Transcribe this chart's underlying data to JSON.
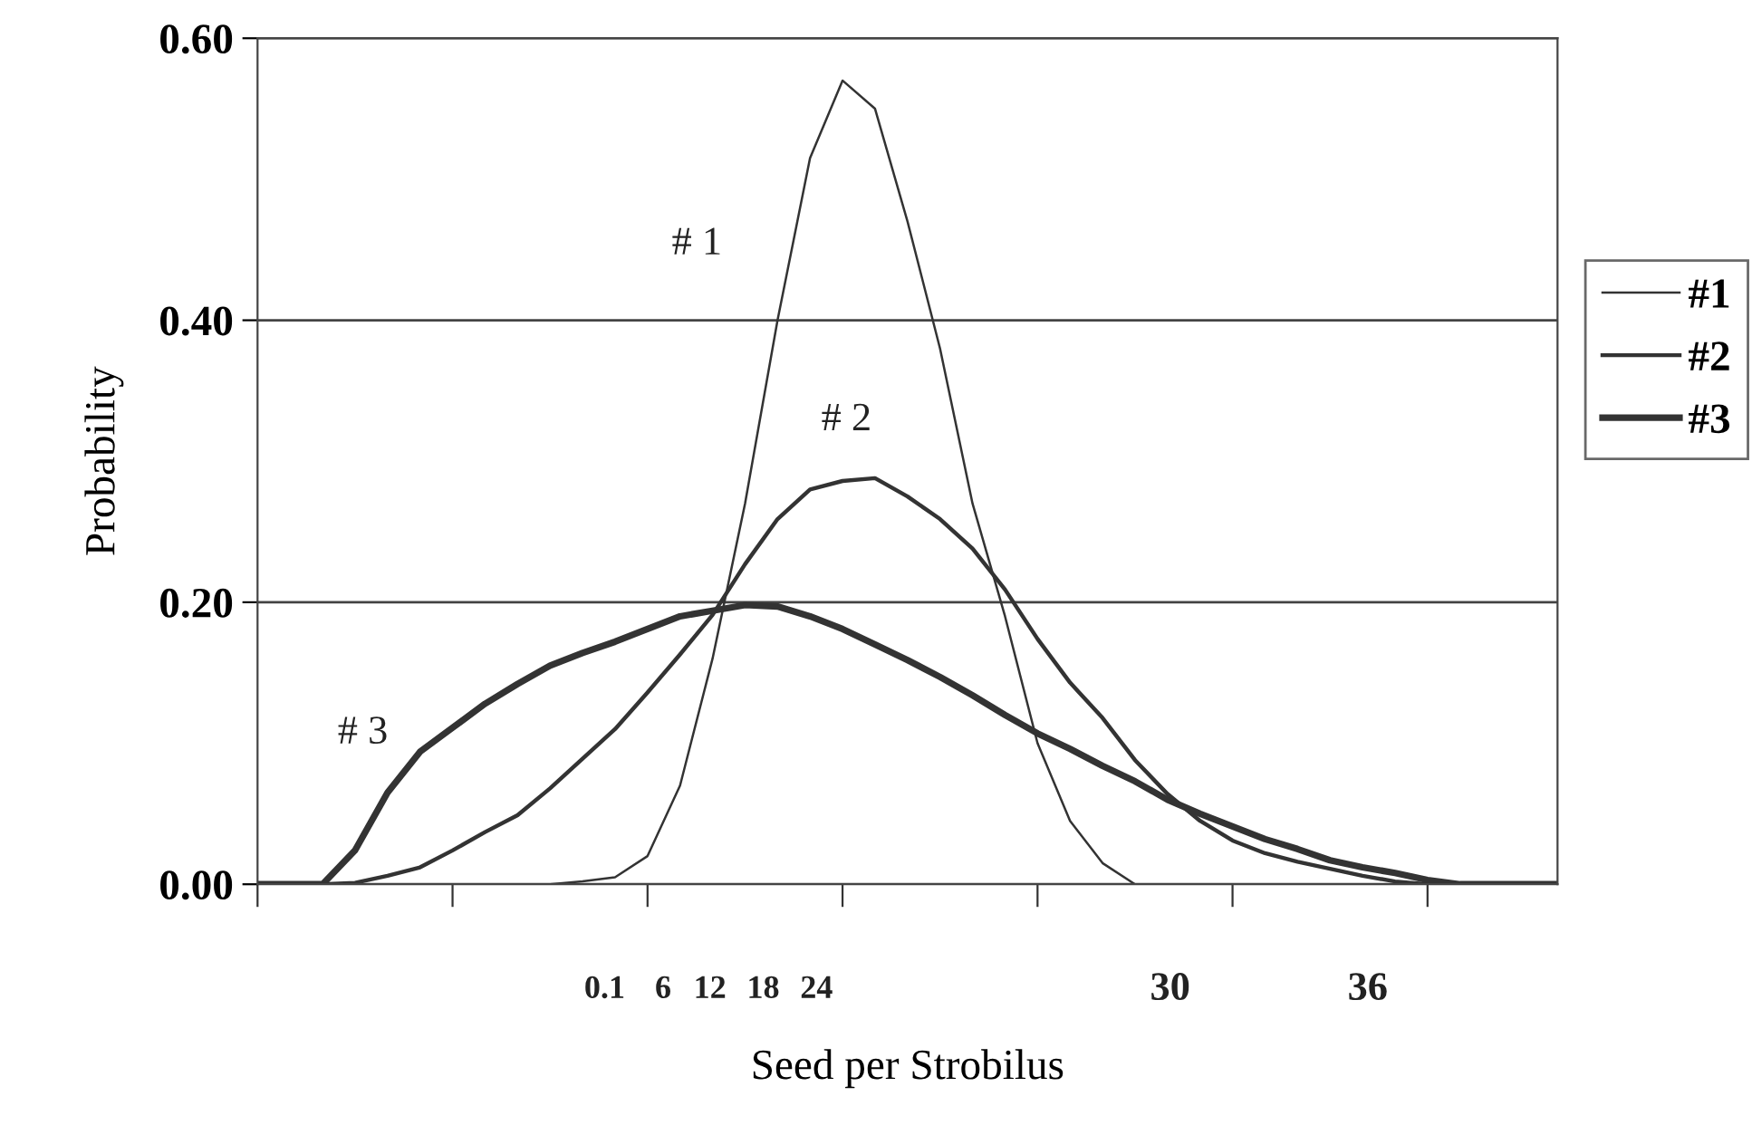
{
  "chart_data": {
    "type": "line",
    "xlabel": "Seed per Strobilus",
    "ylabel": "Probability",
    "categories": [
      null,
      null,
      null,
      null,
      null,
      null,
      null,
      null,
      null,
      null,
      null,
      null,
      null,
      null,
      null,
      null,
      null,
      null,
      null,
      null,
      null,
      null,
      null,
      null,
      null,
      null,
      null,
      null,
      null,
      null,
      null,
      null,
      null,
      null,
      null,
      null,
      null,
      null,
      null,
      null,
      null
    ],
    "ylim": [
      0,
      0.6
    ],
    "yticks": [
      {
        "value": 0,
        "label": "0.00"
      },
      {
        "value": 0.2,
        "label": "0.20"
      },
      {
        "value": 0.4,
        "label": "0.40"
      },
      {
        "value": 0.6,
        "label": "0.60"
      }
    ],
    "grid": "y",
    "legend": "right",
    "marker": "none",
    "line_style": "solid",
    "series": [
      {
        "name": "#1",
        "color": "#333333",
        "values": [
          0,
          0,
          0,
          0,
          0,
          0,
          0,
          0,
          0,
          0,
          0.002,
          0.005,
          0.02,
          0.07,
          0.16,
          0.27,
          0.4,
          0.515,
          0.57,
          0.55,
          0.47,
          0.38,
          0.27,
          0.19,
          0.1,
          0.045,
          0.015,
          0,
          0,
          0,
          0,
          0,
          0,
          0,
          0,
          0,
          0,
          0,
          0,
          0,
          0
        ]
      },
      {
        "name": "#2",
        "color": "#333333",
        "values": [
          0,
          0,
          0,
          0.001,
          0.006,
          0.012,
          0.024,
          0.037,
          0.049,
          0.068,
          0.089,
          0.11,
          0.136,
          0.163,
          0.191,
          0.227,
          0.259,
          0.28,
          0.286,
          0.288,
          0.275,
          0.259,
          0.238,
          0.209,
          0.174,
          0.143,
          0.118,
          0.088,
          0.064,
          0.045,
          0.031,
          0.022,
          0.016,
          0.011,
          0.006,
          0.002,
          0,
          0,
          0,
          0,
          0
        ]
      },
      {
        "name": "#3",
        "color": "#333333",
        "values": [
          0,
          0,
          0,
          0.024,
          0.065,
          0.094,
          0.111,
          0.128,
          0.142,
          0.155,
          0.164,
          0.172,
          0.181,
          0.19,
          0.194,
          0.198,
          0.197,
          0.19,
          0.181,
          0.17,
          0.159,
          0.147,
          0.134,
          0.12,
          0.107,
          0.096,
          0.084,
          0.073,
          0.06,
          0.05,
          0.041,
          0.032,
          0.025,
          0.017,
          0.012,
          0.008,
          0.003,
          0,
          0,
          0,
          0
        ]
      }
    ],
    "annotations": [
      "# 1",
      "# 2",
      "# 3",
      "0.1",
      "6",
      "12",
      "18",
      "24",
      "30",
      "36"
    ]
  }
}
